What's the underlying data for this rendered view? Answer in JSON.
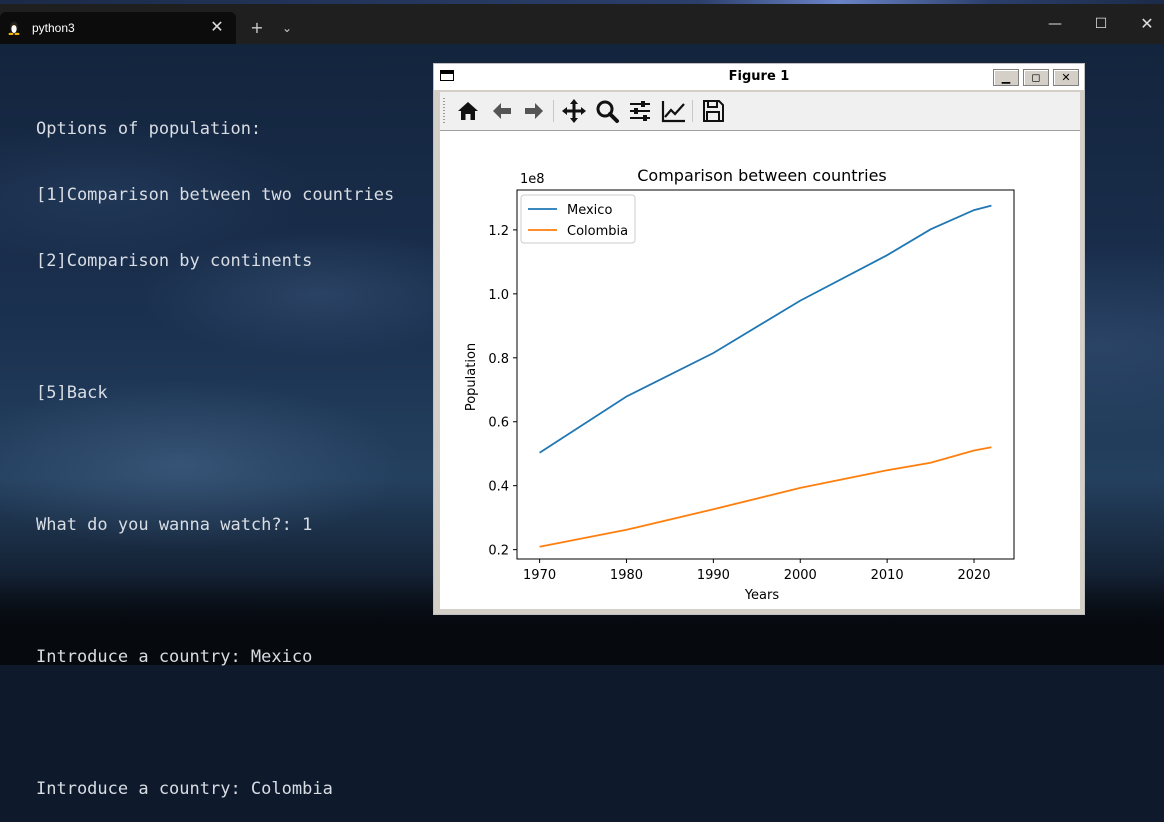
{
  "terminal": {
    "tab_title": "python3",
    "lines": [
      "Options of population:",
      "[1]Comparison between two countries",
      "[2]Comparison by continents",
      "",
      "[5]Back",
      "",
      "What do you wanna watch?: 1",
      "",
      "Introduce a country: Mexico",
      "",
      "Introduce a country: Colombia"
    ]
  },
  "figure_window": {
    "title": "Figure 1",
    "toolbar": [
      "home-icon",
      "back-arrow-icon",
      "forward-arrow-icon",
      "pan-icon",
      "zoom-icon",
      "subplots-icon",
      "axes-edit-icon",
      "save-icon"
    ]
  },
  "colors": {
    "mexico": "#1f77b4",
    "colombia": "#ff7f0e"
  },
  "chart_data": {
    "type": "line",
    "title": "Comparison between countries",
    "xlabel": "Years",
    "ylabel": "Population",
    "offset_label": "1e8",
    "xlim": [
      1967.4,
      2024.6
    ],
    "ylim": [
      0.1707,
      1.3248
    ],
    "xticks": [
      1970,
      1980,
      1990,
      2000,
      2010,
      2020
    ],
    "yticks": [
      "0.2",
      "0.4",
      "0.6",
      "0.8",
      "1.0",
      "1.2"
    ],
    "ytick_values": [
      0.2,
      0.4,
      0.6,
      0.8,
      1.0,
      1.2
    ],
    "legend_position": "upper-left",
    "x": [
      1970,
      1980,
      1990,
      2000,
      2010,
      2015,
      2020,
      2022
    ],
    "series": [
      {
        "name": "Mexico",
        "values": [
          0.503,
          0.679,
          0.815,
          0.979,
          1.121,
          1.202,
          1.262,
          1.276
        ]
      },
      {
        "name": "Colombia",
        "values": [
          0.209,
          0.262,
          0.326,
          0.393,
          0.448,
          0.472,
          0.51,
          0.52
        ]
      }
    ]
  }
}
